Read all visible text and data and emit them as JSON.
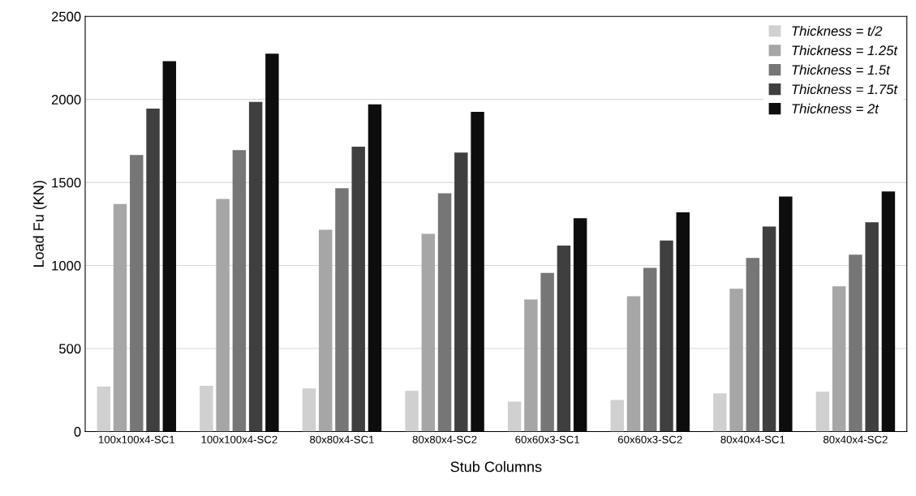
{
  "chart_data": {
    "type": "bar",
    "xlabel": "Stub Columns",
    "ylabel": "Load Fu (KN)",
    "categories": [
      "100x100x4-SC1",
      "100x100x4-SC2",
      "80x80x4-SC1",
      "80x80x4-SC2",
      "60x60x3-SC1",
      "60x60x3-SC2",
      "80x40x4-SC1",
      "80x40x4-SC2"
    ],
    "series": [
      {
        "name": "Thickness = t/2",
        "color": "#d0d0d0",
        "values": [
          270,
          275,
          260,
          245,
          180,
          190,
          230,
          240
        ]
      },
      {
        "name": "Thickness = 1.25t",
        "color": "#a6a6a6",
        "values": [
          1370,
          1400,
          1215,
          1190,
          795,
          815,
          860,
          875
        ]
      },
      {
        "name": "Thickness = 1.5t",
        "color": "#767676",
        "values": [
          1665,
          1695,
          1465,
          1435,
          955,
          985,
          1045,
          1065
        ]
      },
      {
        "name": "Thickness = 1.75t",
        "color": "#3f3f3f",
        "values": [
          1945,
          1985,
          1715,
          1680,
          1120,
          1150,
          1235,
          1260
        ]
      },
      {
        "name": "Thickness = 2t",
        "color": "#0d0d0d",
        "values": [
          2230,
          2275,
          1970,
          1925,
          1285,
          1320,
          1415,
          1445
        ]
      }
    ],
    "ylim": [
      0,
      2500
    ],
    "yticks": [
      0,
      500,
      1000,
      1500,
      2000,
      2500
    ],
    "grid": "y",
    "legend": "top right"
  }
}
